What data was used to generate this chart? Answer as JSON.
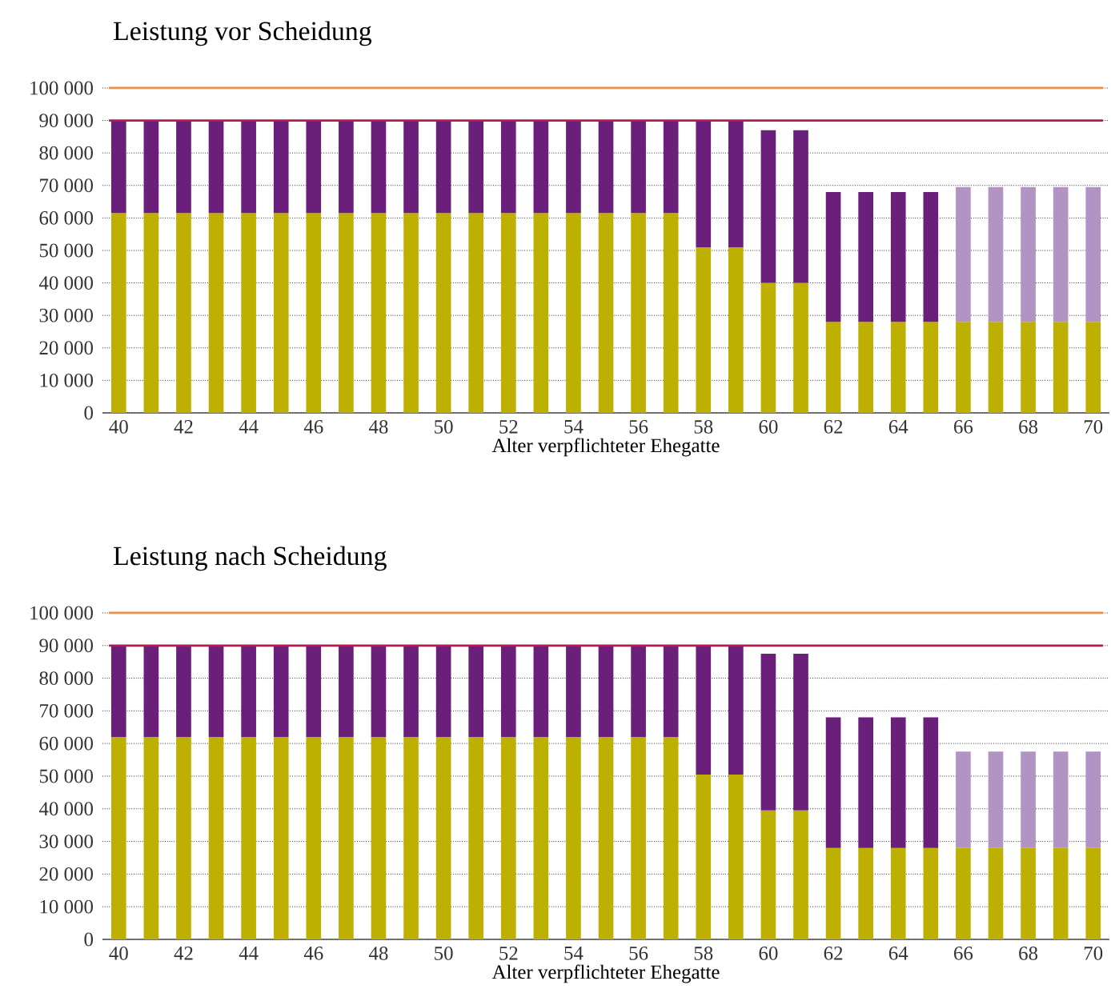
{
  "chart_data": [
    {
      "type": "bar",
      "stacked": true,
      "title": "Leistung vor Scheidung",
      "xlabel": "Alter verpflichteter Ehegatte",
      "categories": [
        "40",
        null,
        "42",
        null,
        "44",
        null,
        "46",
        null,
        "48",
        null,
        "50",
        null,
        "52",
        null,
        "54",
        null,
        "56",
        null,
        "58",
        null,
        "60",
        null,
        "62",
        null,
        "64",
        null,
        "66",
        null,
        "68",
        null,
        "70"
      ],
      "series": [
        {
          "color": "#bdb000",
          "values": [
            61500,
            61500,
            61500,
            61500,
            61500,
            61500,
            61500,
            61500,
            61500,
            61500,
            61500,
            61500,
            61500,
            61500,
            61500,
            61500,
            61500,
            61500,
            51000,
            51000,
            40000,
            40000,
            28000,
            28000,
            28000,
            28000,
            28000,
            28000,
            28000,
            28000,
            28000
          ]
        },
        {
          "color": "#6a1f7a",
          "values": [
            28500,
            28500,
            28500,
            28500,
            28500,
            28500,
            28500,
            28500,
            28500,
            28500,
            28500,
            28500,
            28500,
            28500,
            28500,
            28500,
            28500,
            28500,
            39000,
            39000,
            47000,
            47000,
            40000,
            40000,
            40000,
            40000,
            null,
            null,
            null,
            null,
            null
          ]
        },
        {
          "color": "#b294c4",
          "values": [
            null,
            null,
            null,
            null,
            null,
            null,
            null,
            null,
            null,
            null,
            null,
            null,
            null,
            null,
            null,
            null,
            null,
            null,
            null,
            null,
            null,
            null,
            null,
            null,
            null,
            null,
            41500,
            41500,
            41500,
            41500,
            41500
          ]
        }
      ],
      "ylim": [
        0,
        100000
      ],
      "yticks": [
        0,
        {
          "value": 10000,
          "label": "10 000"
        },
        {
          "value": 20000,
          "label": "20 000"
        },
        {
          "value": 30000,
          "label": "30 000"
        },
        {
          "value": 40000,
          "label": "40 000"
        },
        {
          "value": 50000,
          "label": "50 000"
        },
        {
          "value": 60000,
          "label": "60 000"
        },
        {
          "value": 70000,
          "label": "70 000"
        },
        {
          "value": 80000,
          "label": "80 000"
        },
        {
          "value": 90000,
          "label": "90 000"
        },
        {
          "value": 100000,
          "label": "100 000"
        }
      ],
      "grid": "y",
      "ref_lines": [
        {
          "axis": "y",
          "value": 100000,
          "color": "#e8914a"
        },
        {
          "axis": "y",
          "value": 90000,
          "color": "#b5174f"
        }
      ]
    },
    {
      "type": "bar",
      "stacked": true,
      "title": "Leistung nach Scheidung",
      "xlabel": "Alter verpflichteter Ehegatte",
      "categories": [
        "40",
        null,
        "42",
        null,
        "44",
        null,
        "46",
        null,
        "48",
        null,
        "50",
        null,
        "52",
        null,
        "54",
        null,
        "56",
        null,
        "58",
        null,
        "60",
        null,
        "62",
        null,
        "64",
        null,
        "66",
        null,
        "68",
        null,
        "70"
      ],
      "series": [
        {
          "color": "#bdb000",
          "values": [
            62000,
            62000,
            62000,
            62000,
            62000,
            62000,
            62000,
            62000,
            62000,
            62000,
            62000,
            62000,
            62000,
            62000,
            62000,
            62000,
            62000,
            62000,
            50500,
            50500,
            39500,
            39500,
            28000,
            28000,
            28000,
            28000,
            28000,
            28000,
            28000,
            28000,
            28000
          ]
        },
        {
          "color": "#6a1f7a",
          "values": [
            28000,
            28000,
            28000,
            28000,
            28000,
            28000,
            28000,
            28000,
            28000,
            28000,
            28000,
            28000,
            28000,
            28000,
            28000,
            28000,
            28000,
            28000,
            39500,
            39500,
            48000,
            48000,
            40000,
            40000,
            40000,
            40000,
            null,
            null,
            null,
            null,
            null
          ]
        },
        {
          "color": "#b294c4",
          "values": [
            null,
            null,
            null,
            null,
            null,
            null,
            null,
            null,
            null,
            null,
            null,
            null,
            null,
            null,
            null,
            null,
            null,
            null,
            null,
            null,
            null,
            null,
            null,
            null,
            null,
            null,
            29500,
            29500,
            29500,
            29500,
            29500
          ]
        }
      ],
      "ylim": [
        0,
        100000
      ],
      "yticks": [
        0,
        {
          "value": 10000,
          "label": "10 000"
        },
        {
          "value": 20000,
          "label": "20 000"
        },
        {
          "value": 30000,
          "label": "30 000"
        },
        {
          "value": 40000,
          "label": "40 000"
        },
        {
          "value": 50000,
          "label": "50 000"
        },
        {
          "value": 60000,
          "label": "60 000"
        },
        {
          "value": 70000,
          "label": "70 000"
        },
        {
          "value": 80000,
          "label": "80 000"
        },
        {
          "value": 90000,
          "label": "90 000"
        },
        {
          "value": 100000,
          "label": "100 000"
        }
      ],
      "grid": "y",
      "ref_lines": [
        {
          "axis": "y",
          "value": 100000,
          "color": "#e8914a"
        },
        {
          "axis": "y",
          "value": 90000,
          "color": "#b5174f"
        }
      ]
    }
  ]
}
